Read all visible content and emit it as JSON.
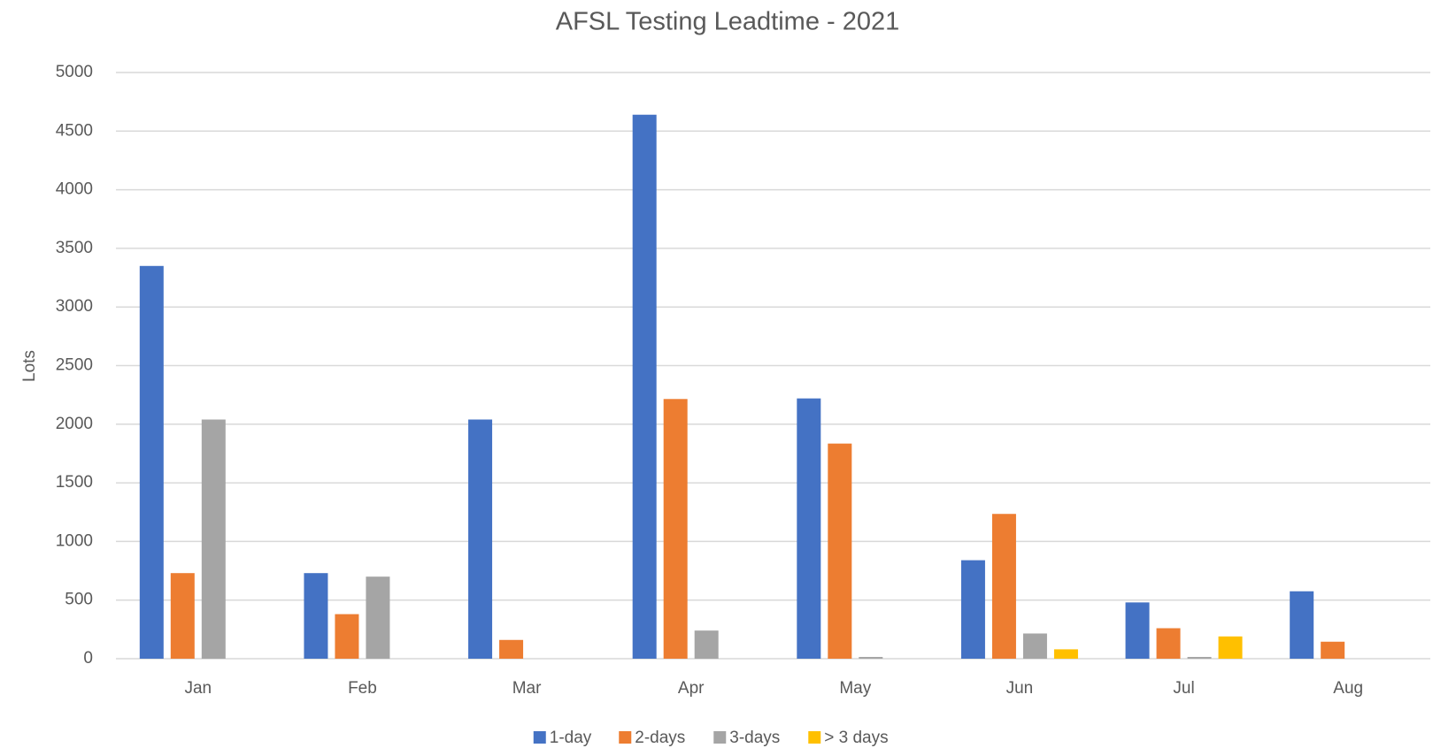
{
  "chart_data": {
    "type": "bar",
    "title": "AFSL Testing Leadtime - 2021",
    "y_label": "Lots",
    "categories": [
      "Jan",
      "Feb",
      "Mar",
      "Apr",
      "May",
      "Jun",
      "Jul",
      "Aug"
    ],
    "series": [
      {
        "name": "1-day",
        "color": "#4472c4",
        "values": [
          3350,
          730,
          2040,
          4640,
          2220,
          840,
          480,
          575
        ]
      },
      {
        "name": "2-days",
        "color": "#ed7d31",
        "values": [
          730,
          380,
          160,
          2215,
          1835,
          1235,
          260,
          145
        ]
      },
      {
        "name": "3-days",
        "color": "#a5a5a5",
        "values": [
          2040,
          700,
          0,
          240,
          15,
          215,
          15,
          0
        ]
      },
      {
        "name": "> 3 days",
        "color": "#ffc000",
        "values": [
          0,
          0,
          0,
          0,
          0,
          80,
          190,
          0
        ]
      }
    ],
    "ylim": [
      0,
      5000
    ],
    "yticks": [
      0,
      500,
      1000,
      1500,
      2000,
      2500,
      3000,
      3500,
      4000,
      4500,
      5000
    ],
    "grid": true,
    "legend": "bottom"
  }
}
